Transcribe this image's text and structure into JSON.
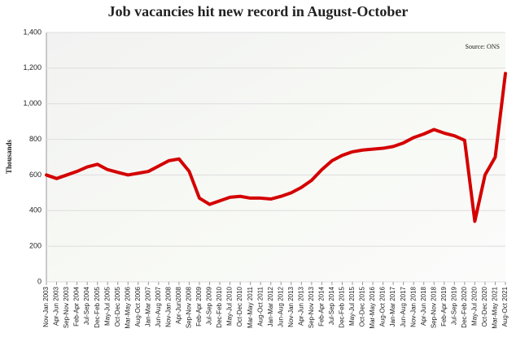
{
  "chart_data": {
    "type": "line",
    "title": "Job vacancies hit new record in August-October",
    "source": "Source: ONS",
    "y_label": "Thousands",
    "categories": [
      "Nov-Jan 2003",
      "Apr-Jun 2003",
      "Sep-Nov 2003",
      "Feb-Apr 2004",
      "Jul-Sep 2004",
      "Dec-Feb 2005",
      "May-Jul 2005",
      "Oct-Dec 2005",
      "Mar-May 2006",
      "Aug-Oct 2006",
      "Jan-Mar 2007",
      "Jun-Aug 2007",
      "Nov-Jan 2008",
      "Apr-Jun2008",
      "Sep-Nov 2008",
      "Feb-Apr 2009",
      "Jul-Sep 2009",
      "Dec-Feb 2010",
      "May-Jul 2010",
      "Oct-Dec 2010",
      "Mar-May 2011",
      "Aug-Oct 2011",
      "Jan-Mar 2012",
      "Jun-Aug 2012",
      "Nov-Jan 2013",
      "Apr-Jun 2013",
      "Sep-Nov 2013",
      "Feb-Apr 2014",
      "Jul-Sep 2014",
      "Dec-Feb 2015",
      "May-Jul 2015",
      "Oct-Dec 2015",
      "Mar-May 2016",
      "Aug-Oct 2016",
      "Jan-Mar 2017",
      "Jun-Aug 2017",
      "Nov-Jan 2018",
      "Apr-Jun 2018",
      "Sep-Nov 2018",
      "Feb-Apr 2019",
      "Jul-Sep 2019",
      "Dec-Feb 2020",
      "May-Jul 2020",
      "Oct-Dec 2020",
      "Mar-May 2021",
      "Aug-Oct 2021"
    ],
    "values": [
      600,
      580,
      600,
      620,
      645,
      660,
      630,
      615,
      600,
      610,
      620,
      650,
      680,
      690,
      620,
      470,
      435,
      455,
      475,
      480,
      470,
      470,
      465,
      480,
      500,
      530,
      570,
      630,
      680,
      710,
      730,
      740,
      745,
      750,
      760,
      780,
      810,
      830,
      855,
      835,
      820,
      795,
      340,
      600,
      700,
      1170
    ],
    "color": "#d40000",
    "ylim": [
      0,
      1400
    ],
    "yticks": [
      0,
      200,
      400,
      600,
      800,
      {
        "value": 1000,
        "label": "1,000"
      },
      {
        "value": 1200,
        "label": "1,200"
      },
      {
        "value": 1400,
        "label": "1,400"
      }
    ],
    "grid": true
  }
}
